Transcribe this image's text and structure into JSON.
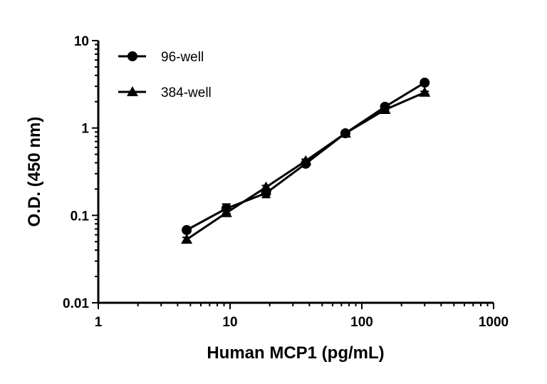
{
  "chart_data": {
    "type": "line",
    "title": "",
    "xlabel": "Human MCP1 (pg/mL)",
    "ylabel": "O.D. (450 nm)",
    "xscale": "log",
    "yscale": "log",
    "xlim": [
      1,
      1000
    ],
    "ylim": [
      0.01,
      10
    ],
    "xticks": [
      1,
      10,
      100,
      1000
    ],
    "xtick_labels": [
      "1",
      "10",
      "100",
      "1000"
    ],
    "yticks": [
      0.01,
      0.1,
      1,
      10
    ],
    "ytick_labels": [
      "0.01",
      "0.1",
      "1",
      "10"
    ],
    "grid": false,
    "legend_position": "top-left",
    "x": [
      4.6875,
      9.375,
      18.75,
      37.5,
      75,
      150,
      300
    ],
    "series": [
      {
        "name": "96-well",
        "marker": "circle",
        "color": "#000000",
        "values": [
          0.068,
          0.12,
          0.18,
          0.39,
          0.87,
          1.75,
          3.3
        ],
        "errors": [
          0.004,
          0.015,
          0.02,
          0.02,
          0.03,
          0.05,
          0.1
        ]
      },
      {
        "name": "384-well",
        "marker": "triangle",
        "color": "#000000",
        "values": [
          0.053,
          0.107,
          0.21,
          0.42,
          0.87,
          1.62,
          2.55
        ],
        "errors": [
          0.003,
          0.006,
          0.01,
          0.02,
          0.03,
          0.05,
          0.08
        ]
      }
    ]
  }
}
